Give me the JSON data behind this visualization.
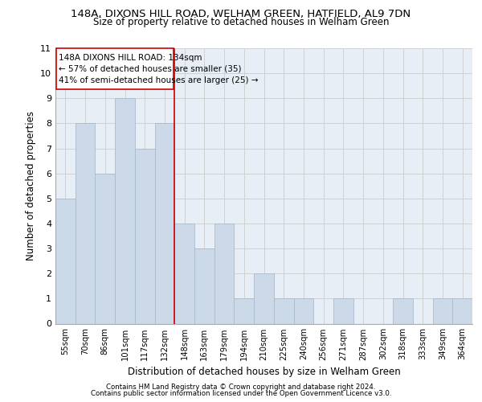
{
  "title1": "148A, DIXONS HILL ROAD, WELHAM GREEN, HATFIELD, AL9 7DN",
  "title2": "Size of property relative to detached houses in Welham Green",
  "xlabel": "Distribution of detached houses by size in Welham Green",
  "ylabel": "Number of detached properties",
  "categories": [
    "55sqm",
    "70sqm",
    "86sqm",
    "101sqm",
    "117sqm",
    "132sqm",
    "148sqm",
    "163sqm",
    "179sqm",
    "194sqm",
    "210sqm",
    "225sqm",
    "240sqm",
    "256sqm",
    "271sqm",
    "287sqm",
    "302sqm",
    "318sqm",
    "333sqm",
    "349sqm",
    "364sqm"
  ],
  "values": [
    5,
    8,
    6,
    9,
    7,
    8,
    4,
    3,
    4,
    1,
    2,
    1,
    1,
    0,
    1,
    0,
    0,
    1,
    0,
    1,
    1
  ],
  "bar_color": "#ccd9e8",
  "bar_edge_color": "#aabbcc",
  "ref_line_x": 5.5,
  "annotation_text": "148A DIXONS HILL ROAD: 134sqm\n← 57% of detached houses are smaller (35)\n41% of semi-detached houses are larger (25) →",
  "annotation_box_color": "#ffffff",
  "annotation_box_edge": "#cc0000",
  "ref_line_color": "#cc0000",
  "ylim": [
    0,
    11
  ],
  "yticks": [
    0,
    1,
    2,
    3,
    4,
    5,
    6,
    7,
    8,
    9,
    10,
    11
  ],
  "footer1": "Contains HM Land Registry data © Crown copyright and database right 2024.",
  "footer2": "Contains public sector information licensed under the Open Government Licence v3.0.",
  "grid_color": "#cccccc",
  "bg_color": "#e8eef5"
}
